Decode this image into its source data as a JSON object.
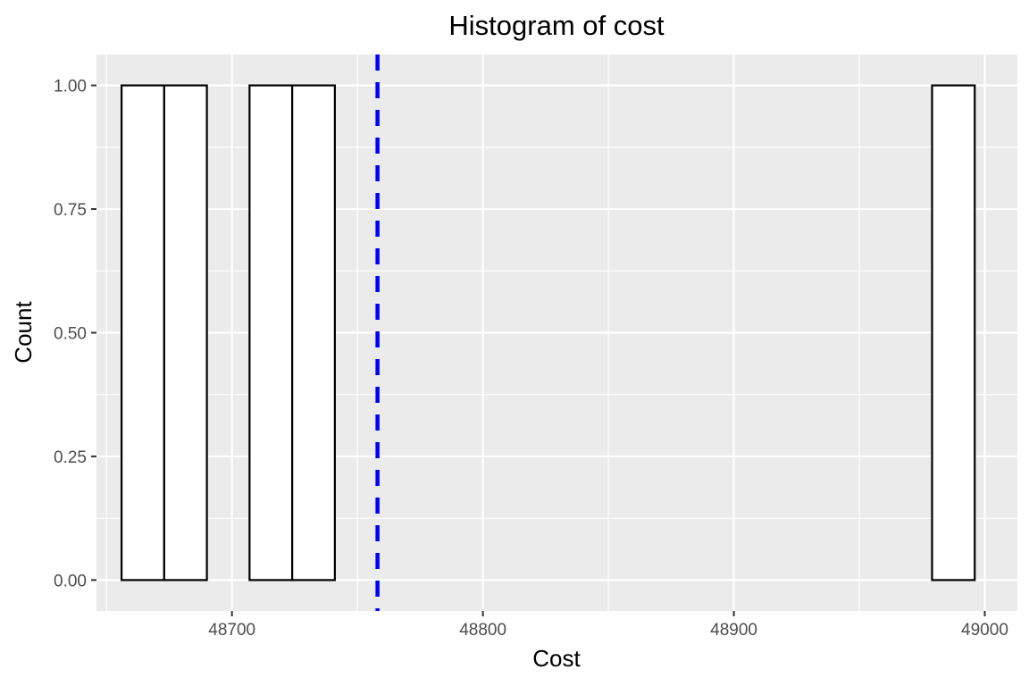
{
  "chart_data": {
    "type": "bar",
    "title": "Histogram of cost",
    "xlabel": "Cost",
    "ylabel": "Count",
    "xlim": [
      48646,
      49013
    ],
    "ylim": [
      -0.0625,
      1.0625
    ],
    "x_ticks": [
      48700,
      48800,
      48900,
      49000
    ],
    "x_tick_labels": [
      "48700",
      "48800",
      "48900",
      "49000"
    ],
    "y_ticks": [
      0,
      0.25,
      0.5,
      0.75,
      1
    ],
    "y_tick_labels": [
      "0.00",
      "0.25",
      "0.50",
      "0.75",
      "1.00"
    ],
    "bin_width": 17,
    "bins": [
      {
        "x0": 48656,
        "x1": 48673,
        "count": 1
      },
      {
        "x0": 48673,
        "x1": 48690,
        "count": 1
      },
      {
        "x0": 48690,
        "x1": 48707,
        "count": 0
      },
      {
        "x0": 48707,
        "x1": 48724,
        "count": 1
      },
      {
        "x0": 48724,
        "x1": 48741,
        "count": 1
      },
      {
        "x0": 48741,
        "x1": 48758,
        "count": 0
      },
      {
        "x0": 48758,
        "x1": 48775,
        "count": 0
      },
      {
        "x0": 48775,
        "x1": 48792,
        "count": 0
      },
      {
        "x0": 48792,
        "x1": 48809,
        "count": 0
      },
      {
        "x0": 48809,
        "x1": 48826,
        "count": 0
      },
      {
        "x0": 48826,
        "x1": 48843,
        "count": 0
      },
      {
        "x0": 48843,
        "x1": 48860,
        "count": 0
      },
      {
        "x0": 48860,
        "x1": 48877,
        "count": 0
      },
      {
        "x0": 48877,
        "x1": 48894,
        "count": 0
      },
      {
        "x0": 48894,
        "x1": 48911,
        "count": 0
      },
      {
        "x0": 48911,
        "x1": 48928,
        "count": 0
      },
      {
        "x0": 48928,
        "x1": 48945,
        "count": 0
      },
      {
        "x0": 48945,
        "x1": 48962,
        "count": 0
      },
      {
        "x0": 48962,
        "x1": 48979,
        "count": 0
      },
      {
        "x0": 48979,
        "x1": 48996,
        "count": 1
      }
    ],
    "reference_line": {
      "x": 48758,
      "color": "#0000ff",
      "style": "dashed"
    },
    "bar_fill": "#ffffff",
    "bar_outline": "#000000",
    "panel_background": "#ebebeb",
    "grid": true,
    "grid_color": "#ffffff",
    "legend": "none"
  }
}
